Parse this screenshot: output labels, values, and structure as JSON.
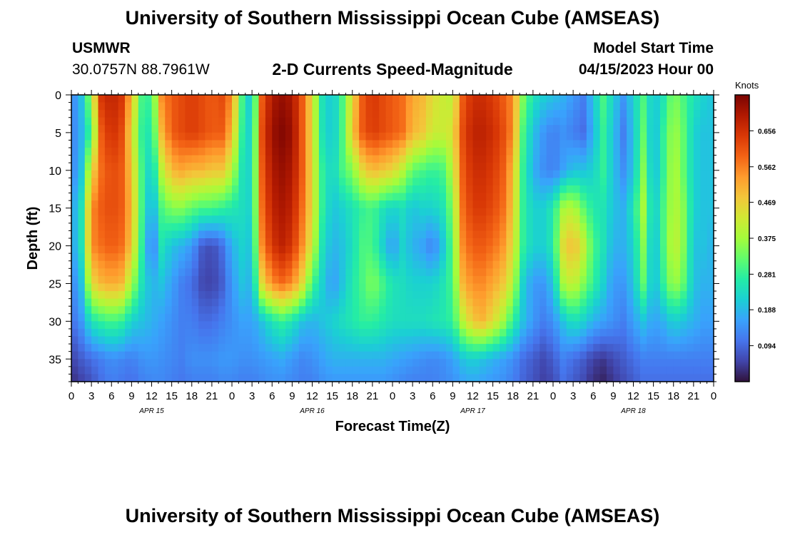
{
  "header": {
    "title": "University of Southern Mississippi Ocean Cube (AMSEAS)",
    "station": "USMWR",
    "coords": "30.0757N  88.7961W",
    "plot_title": "2-D Currents Speed-Magnitude",
    "start_label": "Model Start Time",
    "start_value": "04/15/2023 Hour 00",
    "footer_title": "University of Southern Mississippi Ocean Cube (AMSEAS)"
  },
  "colors": {
    "colormap": [
      "#30123b",
      "#4145ab",
      "#4675ed",
      "#39a2fc",
      "#1bcfd4",
      "#24eca6",
      "#61fc6c",
      "#a4fc3b",
      "#d1e834",
      "#f3c63a",
      "#fe9b2d",
      "#f36315",
      "#d93806",
      "#b11901",
      "#7a0402"
    ]
  },
  "chart_data": {
    "type": "heatmap",
    "title": "2-D Currents Speed-Magnitude",
    "xlabel": "Forecast Time(Z)",
    "ylabel": "Depth (ft)",
    "colorbar_label": "Knots",
    "x_hours_range": [
      0,
      96
    ],
    "ylim": [
      0,
      38
    ],
    "x_tick_labels": [
      "0",
      "3",
      "6",
      "9",
      "12",
      "15",
      "18",
      "21",
      "0",
      "3",
      "6",
      "9",
      "12",
      "15",
      "18",
      "21",
      "0",
      "3",
      "6",
      "9",
      "12",
      "15",
      "18",
      "21",
      "0",
      "3",
      "6",
      "9",
      "12",
      "15",
      "18",
      "21",
      "0"
    ],
    "y_ticks": [
      0,
      5,
      10,
      15,
      20,
      25,
      30,
      35
    ],
    "date_labels": [
      {
        "text": "APR 15",
        "hour": 12
      },
      {
        "text": "APR 16",
        "hour": 36
      },
      {
        "text": "APR 17",
        "hour": 60
      },
      {
        "text": "APR 18",
        "hour": 84
      }
    ],
    "colorbar_range": [
      0,
      0.75
    ],
    "colorbar_ticks": [
      "0.094",
      "0.188",
      "0.281",
      "0.375",
      "0.469",
      "0.562",
      "0.656"
    ],
    "depths": [
      0,
      5,
      10,
      15,
      20,
      25,
      30,
      35,
      38
    ],
    "hours": [
      0,
      1.5,
      3,
      4.5,
      6,
      7.5,
      9,
      10.5,
      12,
      13.5,
      15,
      16.5,
      18,
      19.5,
      21,
      22.5,
      24,
      25.5,
      27,
      28.5,
      30,
      31.5,
      33,
      34.5,
      36,
      37.5,
      39,
      40.5,
      42,
      43.5,
      45,
      46.5,
      48,
      49.5,
      51,
      52.5,
      54,
      55.5,
      57,
      58.5,
      60,
      61.5,
      63,
      64.5,
      66,
      67.5,
      69,
      70.5,
      72,
      73.5,
      75,
      76.5,
      78,
      79.5,
      81,
      82.5,
      84,
      85.5,
      87,
      88.5,
      90,
      91.5,
      93,
      94.5,
      96
    ],
    "speed_knots": [
      [
        0.12,
        0.2,
        0.38,
        0.65,
        0.68,
        0.65,
        0.5,
        0.3,
        0.28,
        0.55,
        0.6,
        0.62,
        0.64,
        0.62,
        0.6,
        0.62,
        0.55,
        0.3,
        0.18,
        0.6,
        0.7,
        0.72,
        0.7,
        0.6,
        0.45,
        0.25,
        0.2,
        0.3,
        0.45,
        0.6,
        0.65,
        0.62,
        0.6,
        0.58,
        0.52,
        0.5,
        0.45,
        0.42,
        0.4,
        0.6,
        0.66,
        0.66,
        0.64,
        0.6,
        0.55,
        0.35,
        0.25,
        0.22,
        0.2,
        0.18,
        0.15,
        0.12,
        0.2,
        0.3,
        0.22,
        0.15,
        0.22,
        0.3,
        0.2,
        0.25,
        0.35,
        0.3,
        0.25,
        0.22,
        0.2
      ],
      [
        0.12,
        0.18,
        0.3,
        0.6,
        0.66,
        0.62,
        0.45,
        0.28,
        0.25,
        0.5,
        0.6,
        0.62,
        0.64,
        0.62,
        0.6,
        0.6,
        0.5,
        0.28,
        0.2,
        0.62,
        0.72,
        0.74,
        0.72,
        0.6,
        0.45,
        0.25,
        0.2,
        0.3,
        0.48,
        0.6,
        0.64,
        0.62,
        0.6,
        0.58,
        0.5,
        0.48,
        0.42,
        0.42,
        0.44,
        0.62,
        0.68,
        0.68,
        0.66,
        0.62,
        0.55,
        0.3,
        0.2,
        0.15,
        0.12,
        0.14,
        0.12,
        0.1,
        0.18,
        0.28,
        0.2,
        0.12,
        0.2,
        0.32,
        0.18,
        0.28,
        0.38,
        0.32,
        0.22,
        0.2,
        0.2
      ],
      [
        0.12,
        0.2,
        0.45,
        0.58,
        0.62,
        0.6,
        0.48,
        0.3,
        0.2,
        0.4,
        0.5,
        0.52,
        0.5,
        0.5,
        0.48,
        0.48,
        0.4,
        0.25,
        0.22,
        0.6,
        0.7,
        0.72,
        0.7,
        0.6,
        0.45,
        0.28,
        0.22,
        0.3,
        0.35,
        0.45,
        0.5,
        0.48,
        0.46,
        0.4,
        0.32,
        0.3,
        0.28,
        0.3,
        0.4,
        0.6,
        0.66,
        0.66,
        0.64,
        0.6,
        0.5,
        0.28,
        0.18,
        0.14,
        0.12,
        0.16,
        0.2,
        0.2,
        0.22,
        0.28,
        0.2,
        0.14,
        0.2,
        0.35,
        0.18,
        0.28,
        0.4,
        0.32,
        0.22,
        0.2,
        0.2
      ],
      [
        0.15,
        0.25,
        0.55,
        0.6,
        0.62,
        0.6,
        0.5,
        0.3,
        0.16,
        0.3,
        0.35,
        0.35,
        0.32,
        0.3,
        0.3,
        0.28,
        0.26,
        0.24,
        0.22,
        0.58,
        0.68,
        0.7,
        0.68,
        0.58,
        0.45,
        0.28,
        0.2,
        0.22,
        0.25,
        0.28,
        0.3,
        0.25,
        0.22,
        0.24,
        0.2,
        0.22,
        0.22,
        0.25,
        0.35,
        0.58,
        0.64,
        0.64,
        0.62,
        0.58,
        0.48,
        0.28,
        0.22,
        0.22,
        0.26,
        0.38,
        0.4,
        0.32,
        0.26,
        0.25,
        0.2,
        0.18,
        0.25,
        0.38,
        0.2,
        0.3,
        0.4,
        0.35,
        0.22,
        0.2,
        0.2
      ],
      [
        0.15,
        0.25,
        0.55,
        0.58,
        0.6,
        0.58,
        0.48,
        0.28,
        0.1,
        0.25,
        0.2,
        0.18,
        0.15,
        0.08,
        0.06,
        0.1,
        0.18,
        0.22,
        0.2,
        0.55,
        0.65,
        0.68,
        0.65,
        0.55,
        0.42,
        0.25,
        0.18,
        0.2,
        0.24,
        0.3,
        0.3,
        0.22,
        0.15,
        0.22,
        0.18,
        0.16,
        0.12,
        0.2,
        0.32,
        0.55,
        0.6,
        0.6,
        0.58,
        0.54,
        0.45,
        0.28,
        0.22,
        0.22,
        0.26,
        0.45,
        0.5,
        0.42,
        0.3,
        0.25,
        0.18,
        0.18,
        0.22,
        0.35,
        0.18,
        0.3,
        0.42,
        0.35,
        0.2,
        0.2,
        0.18
      ],
      [
        0.12,
        0.2,
        0.45,
        0.5,
        0.52,
        0.5,
        0.38,
        0.25,
        0.18,
        0.2,
        0.16,
        0.12,
        0.1,
        0.06,
        0.05,
        0.08,
        0.15,
        0.2,
        0.18,
        0.45,
        0.55,
        0.58,
        0.55,
        0.45,
        0.3,
        0.22,
        0.15,
        0.2,
        0.26,
        0.3,
        0.35,
        0.3,
        0.25,
        0.24,
        0.22,
        0.22,
        0.22,
        0.25,
        0.3,
        0.5,
        0.55,
        0.55,
        0.52,
        0.48,
        0.4,
        0.22,
        0.15,
        0.15,
        0.2,
        0.38,
        0.42,
        0.35,
        0.28,
        0.22,
        0.15,
        0.15,
        0.2,
        0.32,
        0.18,
        0.28,
        0.38,
        0.32,
        0.2,
        0.18,
        0.18
      ],
      [
        0.1,
        0.15,
        0.25,
        0.28,
        0.3,
        0.28,
        0.22,
        0.2,
        0.18,
        0.16,
        0.14,
        0.12,
        0.12,
        0.1,
        0.1,
        0.12,
        0.14,
        0.16,
        0.16,
        0.2,
        0.25,
        0.28,
        0.25,
        0.2,
        0.18,
        0.2,
        0.22,
        0.24,
        0.26,
        0.28,
        0.28,
        0.26,
        0.24,
        0.24,
        0.24,
        0.24,
        0.25,
        0.26,
        0.28,
        0.4,
        0.48,
        0.5,
        0.45,
        0.38,
        0.28,
        0.2,
        0.15,
        0.12,
        0.14,
        0.2,
        0.25,
        0.22,
        0.18,
        0.16,
        0.14,
        0.12,
        0.16,
        0.2,
        0.16,
        0.18,
        0.22,
        0.2,
        0.18,
        0.16,
        0.16
      ],
      [
        0.05,
        0.08,
        0.1,
        0.12,
        0.14,
        0.13,
        0.12,
        0.14,
        0.15,
        0.14,
        0.13,
        0.12,
        0.14,
        0.14,
        0.14,
        0.15,
        0.15,
        0.14,
        0.14,
        0.15,
        0.16,
        0.17,
        0.15,
        0.13,
        0.14,
        0.16,
        0.18,
        0.18,
        0.18,
        0.18,
        0.18,
        0.18,
        0.17,
        0.16,
        0.15,
        0.14,
        0.13,
        0.14,
        0.16,
        0.2,
        0.22,
        0.2,
        0.18,
        0.16,
        0.14,
        0.1,
        0.08,
        0.06,
        0.08,
        0.12,
        0.1,
        0.08,
        0.05,
        0.04,
        0.06,
        0.08,
        0.1,
        0.12,
        0.12,
        0.12,
        0.12,
        0.12,
        0.12,
        0.12,
        0.12
      ],
      [
        0.03,
        0.05,
        0.07,
        0.1,
        0.12,
        0.11,
        0.1,
        0.12,
        0.13,
        0.13,
        0.12,
        0.11,
        0.12,
        0.12,
        0.12,
        0.13,
        0.13,
        0.12,
        0.12,
        0.13,
        0.14,
        0.14,
        0.13,
        0.12,
        0.12,
        0.14,
        0.15,
        0.15,
        0.15,
        0.15,
        0.15,
        0.15,
        0.14,
        0.13,
        0.12,
        0.12,
        0.12,
        0.13,
        0.14,
        0.16,
        0.17,
        0.16,
        0.15,
        0.14,
        0.12,
        0.09,
        0.07,
        0.05,
        0.06,
        0.1,
        0.08,
        0.06,
        0.03,
        0.02,
        0.04,
        0.06,
        0.08,
        0.1,
        0.1,
        0.1,
        0.1,
        0.1,
        0.1,
        0.1,
        0.1
      ]
    ]
  }
}
